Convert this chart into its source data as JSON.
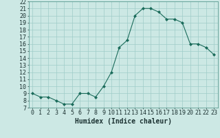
{
  "x": [
    0,
    1,
    2,
    3,
    4,
    5,
    6,
    7,
    8,
    9,
    10,
    11,
    12,
    13,
    14,
    15,
    16,
    17,
    18,
    19,
    20,
    21,
    22,
    23
  ],
  "y": [
    9,
    8.5,
    8.5,
    8,
    7.5,
    7.5,
    9,
    9,
    8.5,
    10,
    12,
    15.5,
    16.5,
    20,
    21,
    21,
    20.5,
    19.5,
    19.5,
    19,
    16,
    16,
    15.5,
    14.5
  ],
  "line_color": "#1a6b5a",
  "marker_color": "#1a6b5a",
  "bg_color": "#cce8e4",
  "grid_color": "#9fccc8",
  "xlabel": "Humidex (Indice chaleur)",
  "xlabel_fontsize": 7,
  "tick_fontsize": 6,
  "xlim": [
    -0.5,
    23.5
  ],
  "ylim": [
    7,
    22
  ],
  "yticks": [
    7,
    8,
    9,
    10,
    11,
    12,
    13,
    14,
    15,
    16,
    17,
    18,
    19,
    20,
    21,
    22
  ],
  "xticks": [
    0,
    1,
    2,
    3,
    4,
    5,
    6,
    7,
    8,
    9,
    10,
    11,
    12,
    13,
    14,
    15,
    16,
    17,
    18,
    19,
    20,
    21,
    22,
    23
  ]
}
